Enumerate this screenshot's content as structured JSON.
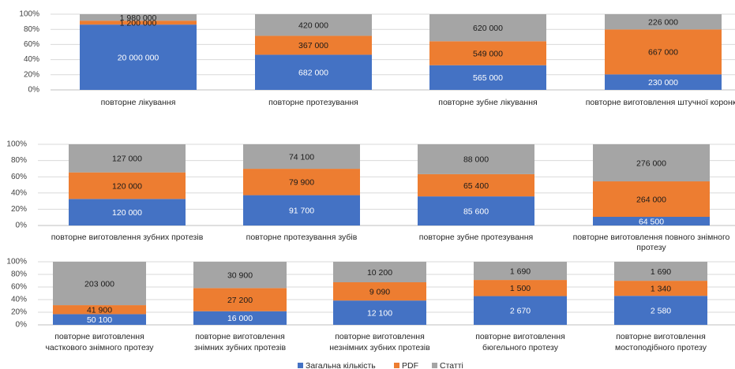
{
  "chart_data": [
    {
      "type": "bar",
      "stacked": "percent",
      "categories": [
        "повторне лікування",
        "повторне протезування",
        "повторне зубне лікування",
        "повторне виготовлення штучної коронки"
      ],
      "series": [
        {
          "name": "Загальна кількість",
          "values": [
            20000000,
            682000,
            565000,
            230000
          ],
          "labels": [
            "20 000 000",
            "682 000",
            "565 000",
            "230 000"
          ]
        },
        {
          "name": "PDF",
          "values": [
            1200000,
            367000,
            549000,
            667000
          ],
          "labels": [
            "1 200 000",
            "367 000",
            "549 000",
            "667 000"
          ]
        },
        {
          "name": "Статті",
          "values": [
            1980000,
            420000,
            620000,
            226000
          ],
          "labels": [
            "1 980 000",
            "420 000",
            "620 000",
            "226 000"
          ]
        }
      ],
      "yticks": [
        "100%",
        "80%",
        "60%",
        "40%",
        "20%",
        "0%"
      ],
      "ylim": [
        0,
        100
      ],
      "grid": true
    },
    {
      "type": "bar",
      "stacked": "percent",
      "categories": [
        "повторне виготовлення зубних протезів",
        "повторне протезування зубів",
        "повторне зубне протезування",
        "повторне виготовлення повного знімного протезу"
      ],
      "series": [
        {
          "name": "Загальна кількість",
          "values": [
            120000,
            91700,
            85600,
            64500
          ],
          "labels": [
            "120 000",
            "91 700",
            "85 600",
            "64 500"
          ]
        },
        {
          "name": "PDF",
          "values": [
            120000,
            79900,
            65400,
            264000
          ],
          "labels": [
            "120 000",
            "79 900",
            "65 400",
            "264 000"
          ]
        },
        {
          "name": "Статті",
          "values": [
            127000,
            74100,
            88000,
            276000
          ],
          "labels": [
            "127 000",
            "74 100",
            "88 000",
            "276 000"
          ]
        }
      ],
      "yticks": [
        "100%",
        "80%",
        "60%",
        "40%",
        "20%",
        "0%"
      ],
      "ylim": [
        0,
        100
      ],
      "grid": true
    },
    {
      "type": "bar",
      "stacked": "percent",
      "categories": [
        "повторне виготовлення часткового знімного протезу",
        "повторне виготовлення знімних зубних протезів",
        "повторне виготовлення незнімних зубних протезів",
        "повторне виготовлення бюгельного протезу",
        "повторне виготовлення мостоподібного протезу"
      ],
      "series": [
        {
          "name": "Загальна кількість",
          "values": [
            50100,
            16000,
            12100,
            2670,
            2580
          ],
          "labels": [
            "50 100",
            "16 000",
            "12 100",
            "2 670",
            "2 580"
          ]
        },
        {
          "name": "PDF",
          "values": [
            41900,
            27200,
            9090,
            1500,
            1340
          ],
          "labels": [
            "41 900",
            "27 200",
            "9 090",
            "1 500",
            "1 340"
          ]
        },
        {
          "name": "Статті",
          "values": [
            203000,
            30900,
            10200,
            1690,
            1690
          ],
          "labels": [
            "203 000",
            "30 900",
            "10 200",
            "1 690",
            "1 690"
          ]
        }
      ],
      "yticks": [
        "100%",
        "80%",
        "60%",
        "40%",
        "20%",
        "0%"
      ],
      "ylim": [
        0,
        100
      ],
      "grid": true
    }
  ],
  "legend": {
    "position": "bottom",
    "items": [
      {
        "name": "Загальна кількість",
        "color": "#4472C4"
      },
      {
        "name": "PDF",
        "color": "#ED7D31"
      },
      {
        "name": "Статті",
        "color": "#A5A5A5"
      }
    ]
  },
  "colors": [
    "#4472C4",
    "#ED7D31",
    "#A5A5A5"
  ]
}
